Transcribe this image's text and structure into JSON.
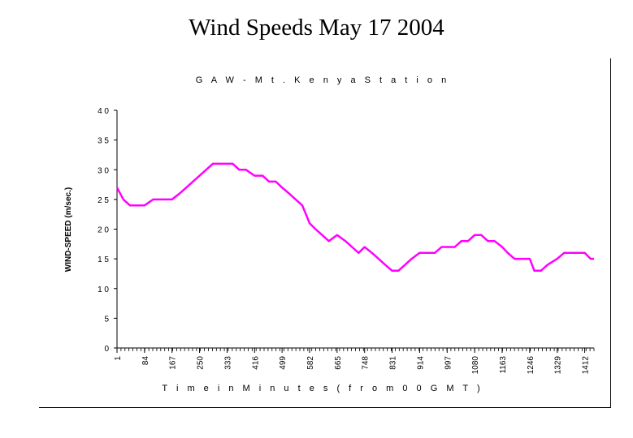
{
  "page": {
    "title": "Wind Speeds May 17 2004"
  },
  "chart_data": {
    "type": "line",
    "title": "G A W - M t . K e n y a S t a t i o n",
    "xlabel": "T i m e i n M i n u t e s ( f r o m 0 0 G M T )",
    "ylabel": "WIND-SPEED (m/sec.)",
    "ylim": [
      0,
      40
    ],
    "yticks": [
      "0",
      "5",
      "1 0",
      "1 5",
      "2 0",
      "2 5",
      "3 0",
      "3 5",
      "4 0"
    ],
    "xticks": [
      "1",
      "84",
      "167",
      "250",
      "333",
      "416",
      "499",
      "582",
      "665",
      "748",
      "831",
      "914",
      "997",
      "1080",
      "1163",
      "1246",
      "1329",
      "1412"
    ],
    "xlim": [
      1,
      1440
    ],
    "grid": false,
    "legend": "none",
    "series_color": "#ff00ff",
    "series": [
      {
        "x": [
          1,
          20,
          40,
          60,
          84,
          110,
          140,
          167,
          190,
          210,
          230,
          250,
          270,
          290,
          310,
          333,
          350,
          370,
          390,
          416,
          440,
          460,
          480,
          499,
          520,
          540,
          560,
          582,
          600,
          620,
          640,
          665,
          690,
          710,
          730,
          748,
          770,
          790,
          810,
          831,
          850,
          870,
          890,
          914,
          940,
          960,
          980,
          997,
          1020,
          1040,
          1060,
          1080,
          1100,
          1120,
          1140,
          1163,
          1180,
          1200,
          1220,
          1246,
          1260,
          1280,
          1300,
          1329,
          1350,
          1370,
          1390,
          1412,
          1430,
          1440
        ],
        "y": [
          27,
          25,
          24,
          24,
          24,
          25,
          25,
          25,
          26,
          27,
          28,
          29,
          30,
          31,
          31,
          31,
          31,
          30,
          30,
          29,
          29,
          28,
          28,
          27,
          26,
          25,
          24,
          21,
          20,
          19,
          18,
          19,
          18,
          17,
          16,
          17,
          16,
          15,
          14,
          13,
          13,
          14,
          15,
          16,
          16,
          16,
          17,
          17,
          17,
          18,
          18,
          19,
          19,
          18,
          18,
          17,
          16,
          15,
          15,
          15,
          13,
          13,
          14,
          15,
          16,
          16,
          16,
          16,
          15,
          15
        ]
      }
    ]
  }
}
